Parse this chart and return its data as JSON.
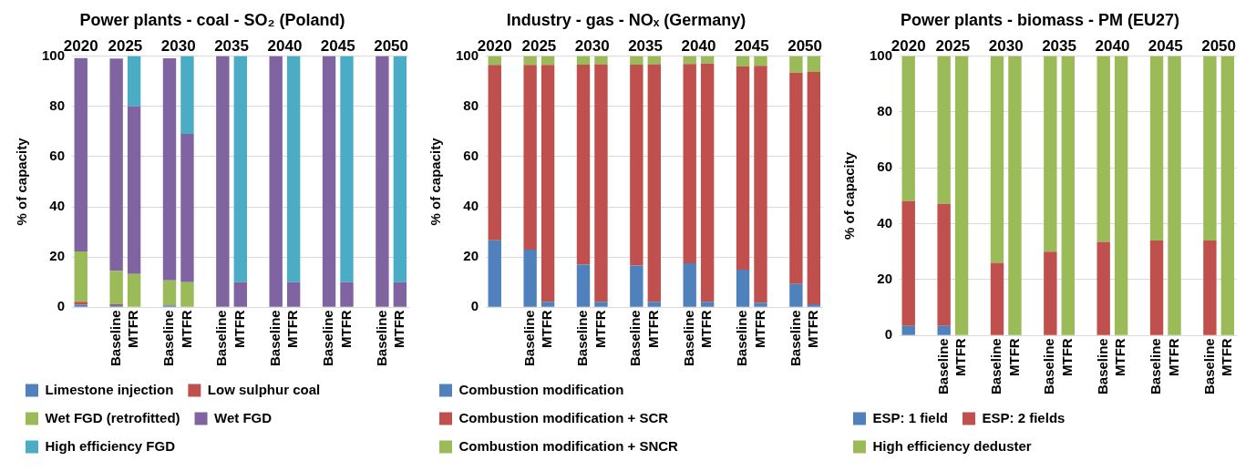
{
  "chart_data": [
    {
      "type": "bar",
      "stacked": true,
      "title": "Power plants - coal - SO₂ (Poland)",
      "ylabel": "% of capacity",
      "ylim": [
        0,
        100
      ],
      "yticks": [
        0,
        20,
        40,
        60,
        80,
        100
      ],
      "grid": "y",
      "legend": "bottom",
      "categories": [
        null,
        null,
        "Baseline",
        "MTFR",
        null,
        "Baseline",
        "MTFR",
        null,
        "Baseline",
        "MTFR",
        null,
        "Baseline",
        "MTFR",
        null,
        "Baseline",
        "MTFR",
        null,
        "Baseline",
        "MTFR"
      ],
      "annotations": [
        "2020",
        "2025",
        "2030",
        "2035",
        "2040",
        "2045",
        "2050"
      ],
      "series": [
        {
          "name": "Limestone injection",
          "color": "#4f81bd",
          "values": [
            1,
            null,
            0.8,
            0,
            null,
            0.7,
            0,
            null,
            0,
            0,
            null,
            0,
            0,
            null,
            0,
            0,
            null,
            0,
            0
          ]
        },
        {
          "name": "Low sulphur coal",
          "color": "#c0504d",
          "values": [
            1.2,
            null,
            0.5,
            0,
            null,
            0,
            0,
            null,
            0,
            0,
            null,
            0,
            0,
            null,
            0,
            0,
            null,
            0,
            0
          ]
        },
        {
          "name": "Wet FGD (retrofitted)",
          "color": "#9bbb59",
          "values": [
            20,
            null,
            13.2,
            13.3,
            null,
            10,
            10,
            null,
            0,
            0,
            null,
            0,
            0,
            null,
            0,
            0,
            null,
            0,
            0
          ]
        },
        {
          "name": "Wet FGD",
          "color": "#8064a2",
          "values": [
            77,
            null,
            84.5,
            66.7,
            null,
            88.4,
            59,
            null,
            100,
            10,
            null,
            100,
            10,
            null,
            100,
            10,
            null,
            100,
            10
          ]
        },
        {
          "name": "High efficiency FGD",
          "color": "#4bacc6",
          "values": [
            0,
            null,
            0,
            20,
            null,
            0,
            31,
            null,
            0,
            90,
            null,
            0,
            90,
            null,
            0,
            90,
            null,
            0,
            90
          ]
        }
      ]
    },
    {
      "type": "bar",
      "stacked": true,
      "title": "Industry - gas - NOₓ (Germany)",
      "ylabel": "% of capacity",
      "ylim": [
        0,
        100
      ],
      "yticks": [
        0,
        20,
        40,
        60,
        80,
        100
      ],
      "grid": "y",
      "legend": "bottom",
      "categories": [
        null,
        null,
        "Baseline",
        "MTFR",
        null,
        "Baseline",
        "MTFR",
        null,
        "Baseline",
        "MTFR",
        null,
        "Baseline",
        "MTFR",
        null,
        "Baseline",
        "MTFR",
        null,
        "Baseline",
        "MTFR"
      ],
      "annotations": [
        "2020",
        "2025",
        "2030",
        "2035",
        "2040",
        "2045",
        "2050"
      ],
      "series": [
        {
          "name": "Combustion modification",
          "color": "#4f81bd",
          "values": [
            26.7,
            null,
            23,
            2.2,
            null,
            17,
            2.2,
            null,
            16.6,
            2.2,
            null,
            17.5,
            2.2,
            null,
            15,
            1.8,
            null,
            9.3,
            1.2
          ]
        },
        {
          "name": "Combustion modification + SCR",
          "color": "#c0504d",
          "values": [
            69.8,
            null,
            73.5,
            94.3,
            null,
            79.6,
            94.6,
            null,
            80,
            94.6,
            null,
            79.4,
            94.8,
            null,
            80.9,
            94.3,
            null,
            84.1,
            92.5
          ]
        },
        {
          "name": "Combustion modification + SNCR",
          "color": "#9bbb59",
          "values": [
            3.5,
            null,
            3.5,
            3.5,
            null,
            3.4,
            3.2,
            null,
            3.4,
            3.2,
            null,
            3.1,
            3,
            null,
            4.1,
            3.9,
            null,
            6.6,
            6.3
          ]
        }
      ]
    },
    {
      "type": "bar",
      "stacked": true,
      "title": "Power plants - biomass - PM (EU27)",
      "ylabel": "% of capacity",
      "ylim": [
        0,
        100
      ],
      "yticks": [
        0,
        20,
        40,
        60,
        80,
        100
      ],
      "grid": "y",
      "legend": "bottom",
      "categories": [
        null,
        null,
        "Baseline",
        "MTFR",
        null,
        "Baseline",
        "MTFR",
        null,
        "Baseline",
        "MTFR",
        null,
        "Baseline",
        "MTFR",
        null,
        "Baseline",
        "MTFR",
        null,
        "Baseline",
        "MTFR"
      ],
      "annotations": [
        "2020",
        "2025",
        "2030",
        "2035",
        "2040",
        "2045",
        "2050"
      ],
      "series": [
        {
          "name": "ESP: 1 field",
          "color": "#4f81bd",
          "values": [
            3.4,
            null,
            3.4,
            0,
            null,
            0,
            0,
            null,
            0,
            0,
            null,
            0,
            0,
            null,
            0,
            0,
            null,
            0,
            0
          ]
        },
        {
          "name": "ESP: 2 fields",
          "color": "#c0504d",
          "values": [
            44.7,
            null,
            43.7,
            0,
            null,
            26,
            0,
            null,
            30,
            0,
            null,
            33.5,
            0,
            null,
            34,
            0,
            null,
            34,
            0
          ]
        },
        {
          "name": "High efficiency deduster",
          "color": "#9bbb59",
          "values": [
            51.9,
            null,
            52.9,
            100,
            null,
            74,
            100,
            null,
            70,
            100,
            null,
            66.5,
            100,
            null,
            66,
            100,
            null,
            66,
            100
          ]
        }
      ]
    }
  ]
}
